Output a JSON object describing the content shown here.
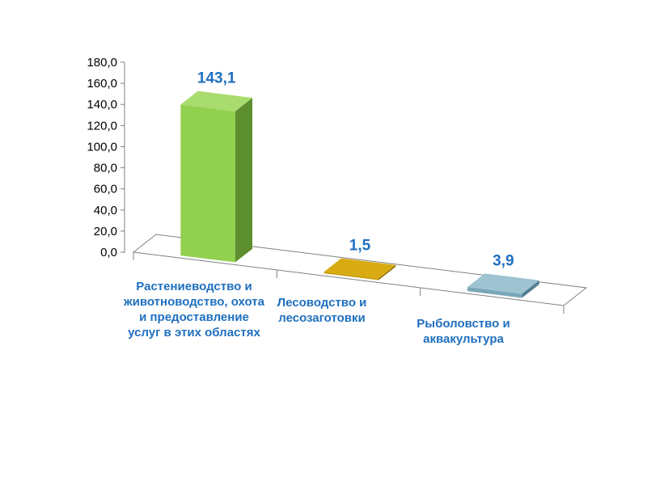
{
  "chart_data": {
    "type": "bar",
    "title": "",
    "xlabel": "",
    "ylabel": "",
    "ylim": [
      0,
      180
    ],
    "y_tick_step": 20,
    "y_tick_labels": [
      "0,0",
      "20,0",
      "40,0",
      "60,0",
      "80,0",
      "100,0",
      "120,0",
      "140,0",
      "160,0",
      "180,0"
    ],
    "categories": [
      "Растениеводство и животноводство, охота и предоставление услуг в этих областях",
      "Лесоводство и лесозаготовки",
      "Рыболовство и аквакультура"
    ],
    "values": [
      143.1,
      1.5,
      3.9
    ],
    "data_labels": [
      "143,1",
      "1,5",
      "3,9"
    ],
    "grid": false,
    "legend": "none",
    "three_d": true
  },
  "colors": {
    "bar_fronts": [
      "#92d050",
      "#c79a00",
      "#7aa7b8"
    ],
    "bar_sides": [
      "#5e8f2e",
      "#8a6a00",
      "#4f7f90"
    ],
    "bar_tops": [
      "#a9dc6e",
      "#d8ab12",
      "#9ec3d1"
    ],
    "label_text": "#1f6fbf",
    "axis": "#808080"
  }
}
